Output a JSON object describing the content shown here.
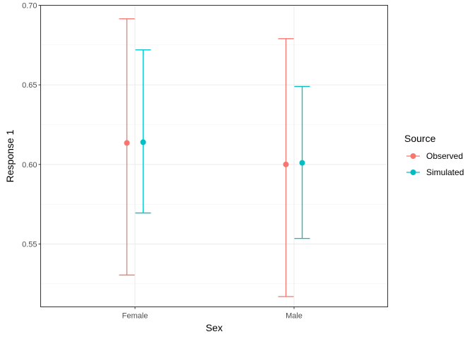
{
  "chart_data": {
    "type": "errorbar-point",
    "xlabel": "Sex",
    "ylabel": "Response 1",
    "categories": [
      "Female",
      "Male"
    ],
    "ylim": [
      0.5105,
      0.7
    ],
    "y_ticks": [
      "0.55",
      "0.60",
      "0.65",
      "0.70"
    ],
    "grid": true,
    "legend": {
      "title": "Source",
      "position": "right"
    },
    "series": [
      {
        "name": "Observed",
        "color": "#F8766D",
        "points": [
          {
            "x": "Female",
            "y": 0.6135,
            "lower": 0.5305,
            "upper": 0.6915
          },
          {
            "x": "Male",
            "y": 0.6,
            "lower": 0.517,
            "upper": 0.679
          }
        ]
      },
      {
        "name": "Simulated",
        "color": "#00BFC4",
        "points": [
          {
            "x": "Female",
            "y": 0.614,
            "lower": 0.5695,
            "upper": 0.672
          },
          {
            "x": "Male",
            "y": 0.601,
            "lower": 0.5535,
            "upper": 0.649
          }
        ]
      }
    ]
  }
}
